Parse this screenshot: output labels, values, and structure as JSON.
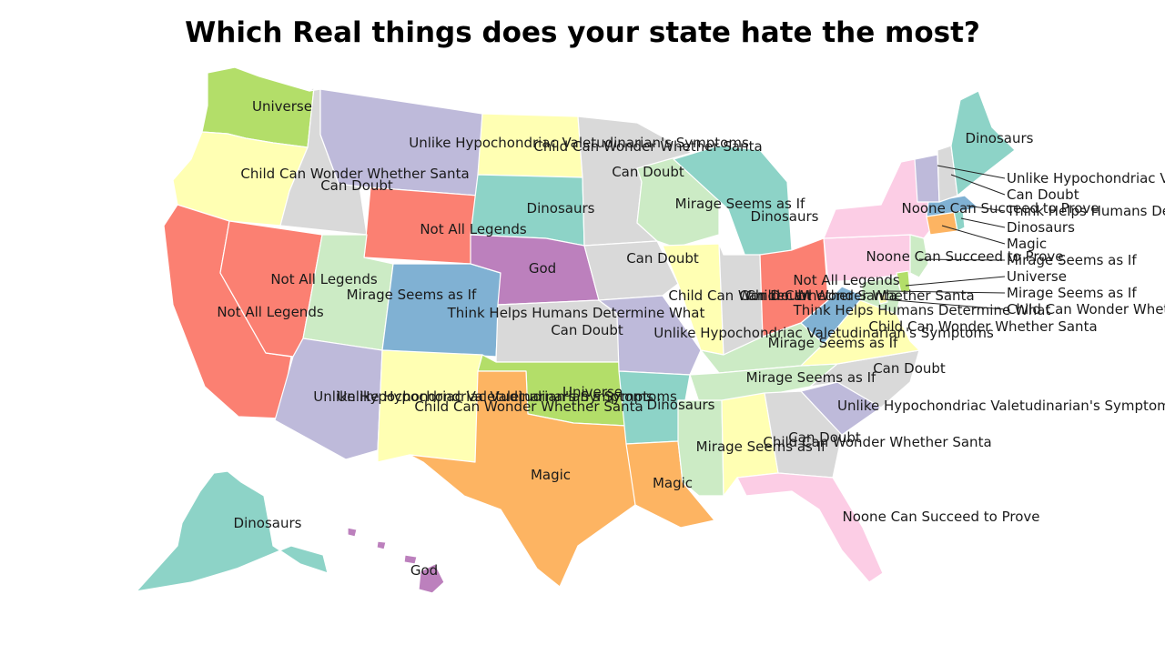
{
  "title": "Which Real things does your state hate the most?",
  "categories": {
    "universe": {
      "label": "Universe",
      "color": "#b3de69"
    },
    "child_santa": {
      "label": "Child Can Wonder Whether Santa",
      "color": "#ffffb3"
    },
    "can_doubt": {
      "label": "Can Doubt",
      "color": "#d9d9d9"
    },
    "not_all_legends": {
      "label": "Not All Legends",
      "color": "#fb8072"
    },
    "unlike_hypo": {
      "label": "Unlike Hypochondriac Valetudinarian's Symptoms",
      "color": "#bebada"
    },
    "dinosaurs": {
      "label": "Dinosaurs",
      "color": "#8dd3c7"
    },
    "god": {
      "label": "God",
      "color": "#bc80bd"
    },
    "mirage": {
      "label": "Mirage Seems as If",
      "color": "#ccebc5"
    },
    "think_helps": {
      "label": "Think Helps Humans Determine What",
      "color": "#80b1d3"
    },
    "magic": {
      "label": "Magic",
      "color": "#fdb462"
    },
    "noone": {
      "label": "Noone Can Succeed to Prove",
      "color": "#fccde5"
    }
  },
  "states": [
    {
      "code": "WA",
      "category": "universe"
    },
    {
      "code": "OR",
      "category": "child_santa"
    },
    {
      "code": "ID",
      "category": "can_doubt"
    },
    {
      "code": "CA",
      "category": "not_all_legends"
    },
    {
      "code": "NV",
      "category": "not_all_legends"
    },
    {
      "code": "MT",
      "category": "unlike_hypo"
    },
    {
      "code": "WY",
      "category": "not_all_legends"
    },
    {
      "code": "UT",
      "category": "mirage"
    },
    {
      "code": "CO",
      "category": "think_helps"
    },
    {
      "code": "AZ",
      "category": "unlike_hypo"
    },
    {
      "code": "NM",
      "category": "child_santa"
    },
    {
      "code": "ND",
      "category": "child_santa"
    },
    {
      "code": "SD",
      "category": "dinosaurs"
    },
    {
      "code": "NE",
      "category": "god"
    },
    {
      "code": "KS",
      "category": "can_doubt"
    },
    {
      "code": "OK",
      "category": "universe"
    },
    {
      "code": "TX",
      "category": "magic"
    },
    {
      "code": "MN",
      "category": "can_doubt"
    },
    {
      "code": "IA",
      "category": "can_doubt"
    },
    {
      "code": "MO",
      "category": "unlike_hypo"
    },
    {
      "code": "AR",
      "category": "dinosaurs"
    },
    {
      "code": "LA",
      "category": "magic"
    },
    {
      "code": "WI",
      "category": "mirage"
    },
    {
      "code": "IL",
      "category": "child_santa"
    },
    {
      "code": "MI",
      "category": "dinosaurs"
    },
    {
      "code": "IN",
      "category": "can_doubt"
    },
    {
      "code": "OH",
      "category": "not_all_legends"
    },
    {
      "code": "KY",
      "category": "mirage"
    },
    {
      "code": "TN",
      "category": "mirage"
    },
    {
      "code": "MS",
      "category": "mirage"
    },
    {
      "code": "AL",
      "category": "child_santa"
    },
    {
      "code": "GA",
      "category": "can_doubt"
    },
    {
      "code": "FL",
      "category": "noone"
    },
    {
      "code": "SC",
      "category": "unlike_hypo"
    },
    {
      "code": "NC",
      "category": "can_doubt"
    },
    {
      "code": "VA",
      "category": "child_santa"
    },
    {
      "code": "WV",
      "category": "think_helps"
    },
    {
      "code": "PA",
      "category": "noone"
    },
    {
      "code": "NY",
      "category": "noone"
    },
    {
      "code": "NJ",
      "category": "mirage"
    },
    {
      "code": "DE",
      "category": "universe"
    },
    {
      "code": "MD",
      "category": "mirage"
    },
    {
      "code": "DC",
      "category": "child_santa"
    },
    {
      "code": "CT",
      "category": "magic"
    },
    {
      "code": "RI",
      "category": "dinosaurs"
    },
    {
      "code": "MA",
      "category": "think_helps"
    },
    {
      "code": "VT",
      "category": "unlike_hypo"
    },
    {
      "code": "NH",
      "category": "can_doubt"
    },
    {
      "code": "ME",
      "category": "dinosaurs"
    },
    {
      "code": "AK",
      "category": "dinosaurs"
    },
    {
      "code": "HI",
      "category": "god"
    }
  ],
  "labels": [
    {
      "text": "Universe"
    },
    {
      "text": "Child Can Wonder Whether Santa"
    },
    {
      "text": "Can Doubt"
    },
    {
      "text": "Not All Legends"
    },
    {
      "text": "Not All Legends"
    },
    {
      "text": "Not All Legends"
    },
    {
      "text": "Mirage Seems as If"
    },
    {
      "text": "Unlike Hypochondriac Valetudinarian's Symptoms"
    },
    {
      "text": "Child Can Wonder Whether Santa"
    },
    {
      "text": "Dinosaurs"
    },
    {
      "text": "God"
    },
    {
      "text": "Think Helps Humans Determine What"
    },
    {
      "text": "Can Doubt"
    },
    {
      "text": "Unlike Hypochondriac Valetudinarian's Symptoms"
    },
    {
      "text": "Child Can Wonder Whether Santa"
    },
    {
      "text": "Universe"
    },
    {
      "text": "Unlike Hypochondriac Valetudinarian's Symptoms"
    },
    {
      "text": "Magic"
    },
    {
      "text": "Can Doubt"
    },
    {
      "text": "Can Doubt"
    },
    {
      "text": "Mirage Seems as If"
    },
    {
      "text": "Dinosaurs"
    },
    {
      "text": "Child Can Wonder Whether Santa"
    },
    {
      "text": "Can Doubt"
    },
    {
      "text": "Not All Legends"
    },
    {
      "text": "Child Can Wonder Whether Santa"
    },
    {
      "text": "Unlike Hypochondriac Valetudinarian's Symptoms"
    },
    {
      "text": "Mirage Seems as If"
    },
    {
      "text": "Mirage Seems as If"
    },
    {
      "text": "Dinosaurs"
    },
    {
      "text": "Mirage Seems as If"
    },
    {
      "text": "Child Can Wonder Whether Santa"
    },
    {
      "text": "Can Doubt"
    },
    {
      "text": "Magic"
    },
    {
      "text": "Noone Can Succeed to Prove"
    },
    {
      "text": "Unlike Hypochondriac Valetudinarian's Symptoms"
    },
    {
      "text": "Can Doubt"
    },
    {
      "text": "Child Can Wonder Whether Santa"
    },
    {
      "text": "Think Helps Humans Determine What"
    },
    {
      "text": "Noone Can Succeed to Prove"
    },
    {
      "text": "Noone Can Succeed to Prove"
    },
    {
      "text": "Dinosaurs"
    },
    {
      "text": "Dinosaurs"
    },
    {
      "text": "God"
    }
  ],
  "callouts": [
    {
      "text": "Unlike Hypochondriac Valetudinarian's Symptoms"
    },
    {
      "text": "Can Doubt"
    },
    {
      "text": "Think Helps Humans Determine What"
    },
    {
      "text": "Dinosaurs"
    },
    {
      "text": "Magic"
    },
    {
      "text": "Mirage Seems as If"
    },
    {
      "text": "Universe"
    },
    {
      "text": "Mirage Seems as If"
    },
    {
      "text": "Child Can Wonder Whether Santa"
    }
  ]
}
